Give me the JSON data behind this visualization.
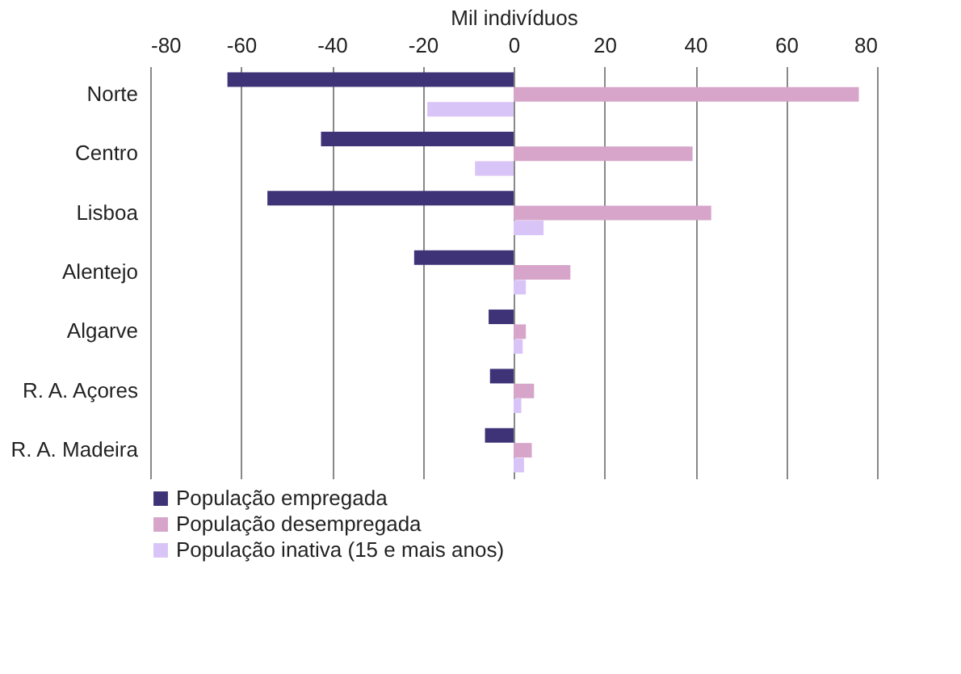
{
  "chart_data": {
    "type": "bar",
    "orientation": "horizontal",
    "xlabel": "Mil indivíduos",
    "categories": [
      "Norte",
      "Centro",
      "Lisboa",
      "Alentejo",
      "Algarve",
      "R. A. Açores",
      "R. A. Madeira"
    ],
    "series": [
      {
        "name": "População empregada",
        "color": "#3f3378",
        "values": [
          -63,
          -42.4,
          -54.2,
          -21.9,
          -5.5,
          -5.2,
          -6.3
        ]
      },
      {
        "name": "População desempregada",
        "color": "#d6a5c9",
        "values": [
          76,
          39.4,
          43.5,
          12.5,
          2.7,
          4.5,
          4
        ]
      },
      {
        "name": "População inativa (15 e mais anos)",
        "color": "#d9c4f7",
        "values": [
          -19,
          -8.5,
          6.6,
          2.7,
          2,
          1.7,
          2.3
        ]
      }
    ],
    "xlim": [
      -80,
      80
    ],
    "xticks": [
      -80,
      -60,
      -40,
      -20,
      0,
      20,
      40,
      60,
      80
    ],
    "grid": "x",
    "legend": "bottom left"
  }
}
